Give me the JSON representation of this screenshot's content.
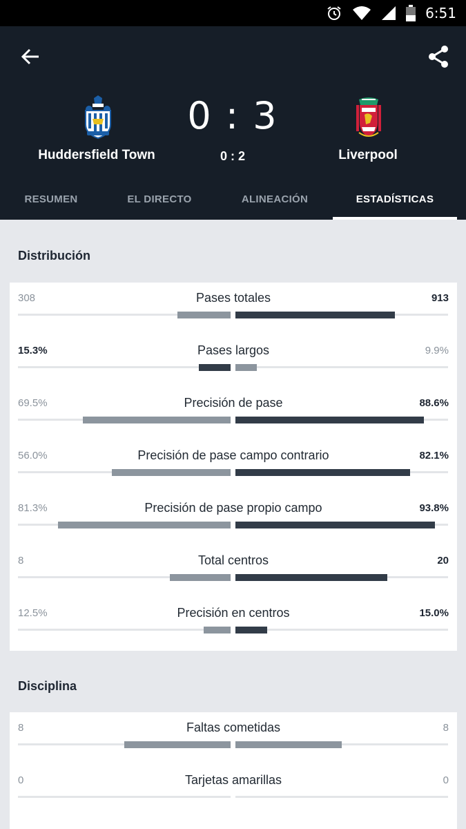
{
  "status_bar": {
    "time": "6:51",
    "icons": [
      "alarm-icon",
      "wifi-icon",
      "signal-icon",
      "battery-icon"
    ]
  },
  "match": {
    "home_team": "Huddersfield Town",
    "away_team": "Liverpool",
    "score": "0 : 3",
    "half_time_score": "0 : 2",
    "home_crest_icon": "huddersfield-crest-icon",
    "away_crest_icon": "liverpool-crest-icon"
  },
  "tabs": [
    {
      "label": "RESUMEN",
      "active": false
    },
    {
      "label": "EL DIRECTO",
      "active": false
    },
    {
      "label": "ALINEACIÓN",
      "active": false
    },
    {
      "label": "ESTADÍSTICAS",
      "active": true
    }
  ],
  "colors": {
    "header_bg": "#161e28",
    "leading_bar": "#323c48",
    "trailing_bar": "#8c959e",
    "page_bg": "#e6e8ec"
  },
  "sections": [
    {
      "title": "Distribución",
      "stats": [
        {
          "label": "Pases totales",
          "home": "308",
          "away": "913",
          "home_fraction": 0.25,
          "away_fraction": 0.75,
          "leader": "away"
        },
        {
          "label": "Pases largos",
          "home": "15.3%",
          "away": "9.9%",
          "home_fraction": 0.15,
          "away_fraction": 0.1,
          "leader": "home"
        },
        {
          "label": "Precisión de pase",
          "home": "69.5%",
          "away": "88.6%",
          "home_fraction": 0.695,
          "away_fraction": 0.886,
          "leader": "away"
        },
        {
          "label": "Precisión de pase campo contrario",
          "home": "56.0%",
          "away": "82.1%",
          "home_fraction": 0.56,
          "away_fraction": 0.821,
          "leader": "away"
        },
        {
          "label": "Precisión de pase propio campo",
          "home": "81.3%",
          "away": "93.8%",
          "home_fraction": 0.813,
          "away_fraction": 0.938,
          "leader": "away"
        },
        {
          "label": "Total centros",
          "home": "8",
          "away": "20",
          "home_fraction": 0.285,
          "away_fraction": 0.715,
          "leader": "away"
        },
        {
          "label": "Precisión en centros",
          "home": "12.5%",
          "away": "15.0%",
          "home_fraction": 0.125,
          "away_fraction": 0.15,
          "leader": "away"
        }
      ]
    },
    {
      "title": "Disciplina",
      "stats": [
        {
          "label": "Faltas cometidas",
          "home": "8",
          "away": "8",
          "home_fraction": 0.5,
          "away_fraction": 0.5,
          "leader": "none"
        },
        {
          "label": "Tarjetas amarillas",
          "home": "0",
          "away": "0",
          "home_fraction": 0,
          "away_fraction": 0,
          "leader": "none"
        }
      ]
    }
  ]
}
